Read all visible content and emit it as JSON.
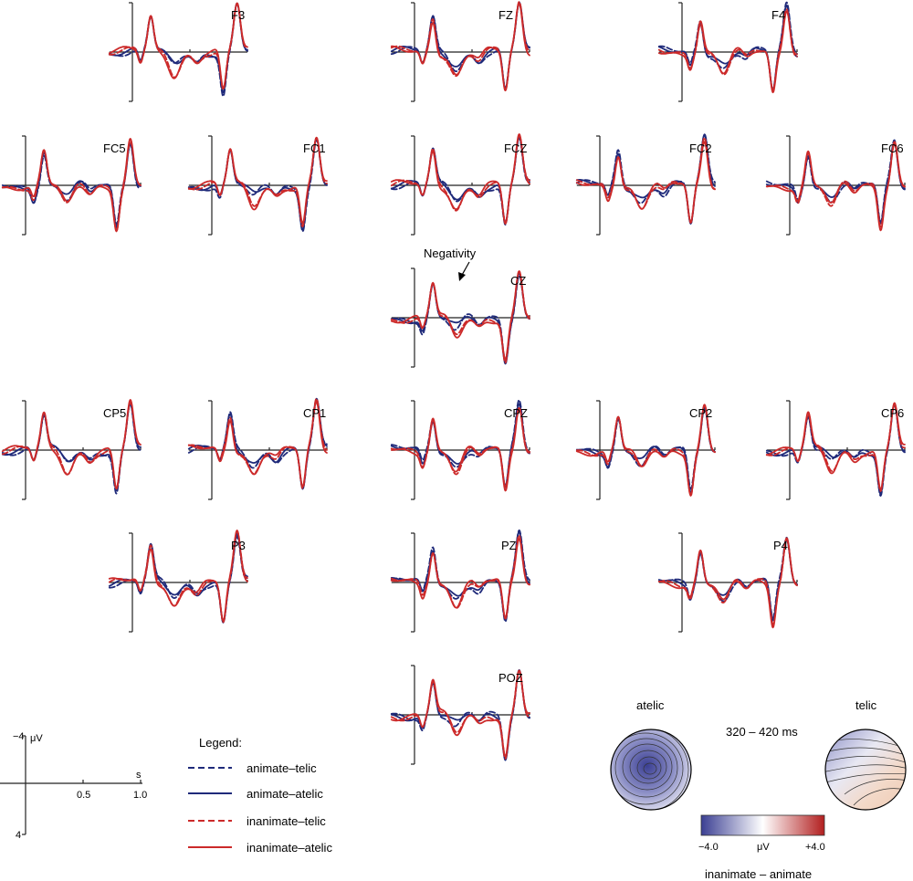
{
  "chart_data": {
    "type": "line",
    "title": "",
    "x_unit": "s",
    "y_unit": "μV",
    "xlim": [
      -0.2,
      1.0
    ],
    "ylim": [
      -4,
      4
    ],
    "y_negative_up": true,
    "x_ticks": [
      0.5,
      1.0
    ],
    "y_ticks": [
      -4,
      4
    ],
    "legend_title": "Legend:",
    "series": [
      {
        "name": "animate–telic",
        "color": "#1f2a7a",
        "dash": "dashed"
      },
      {
        "name": "animate–atelic",
        "color": "#1f2a7a",
        "dash": "solid"
      },
      {
        "name": "inanimate–telic",
        "color": "#cc2a2a",
        "dash": "dashed"
      },
      {
        "name": "inanimate–atelic",
        "color": "#cc2a2a",
        "dash": "solid"
      }
    ],
    "electrodes": [
      "F3",
      "FZ",
      "F4",
      "FC5",
      "FC1",
      "FCZ",
      "FC2",
      "FC6",
      "CZ",
      "CP5",
      "CP1",
      "CPZ",
      "CP2",
      "CP6",
      "P3",
      "PZ",
      "P4",
      "POZ"
    ],
    "annotation": {
      "electrode": "CZ",
      "text": "Negativity",
      "time_s": 0.35
    },
    "topomap": {
      "window": "320 – 420 ms",
      "maps": [
        {
          "label": "atelic",
          "min_uV": -4.0,
          "center": "central"
        },
        {
          "label": "telic",
          "min_uV": -2.5,
          "max_uV": 1.5
        }
      ],
      "colorbar": {
        "min_label": "−4.0",
        "max_label": "+4.0",
        "unit": "μV",
        "min_color": "#3b3f93",
        "mid_color": "#ffffff",
        "max_color": "#b21f1f"
      },
      "difference_label": "inanimate – animate"
    }
  }
}
